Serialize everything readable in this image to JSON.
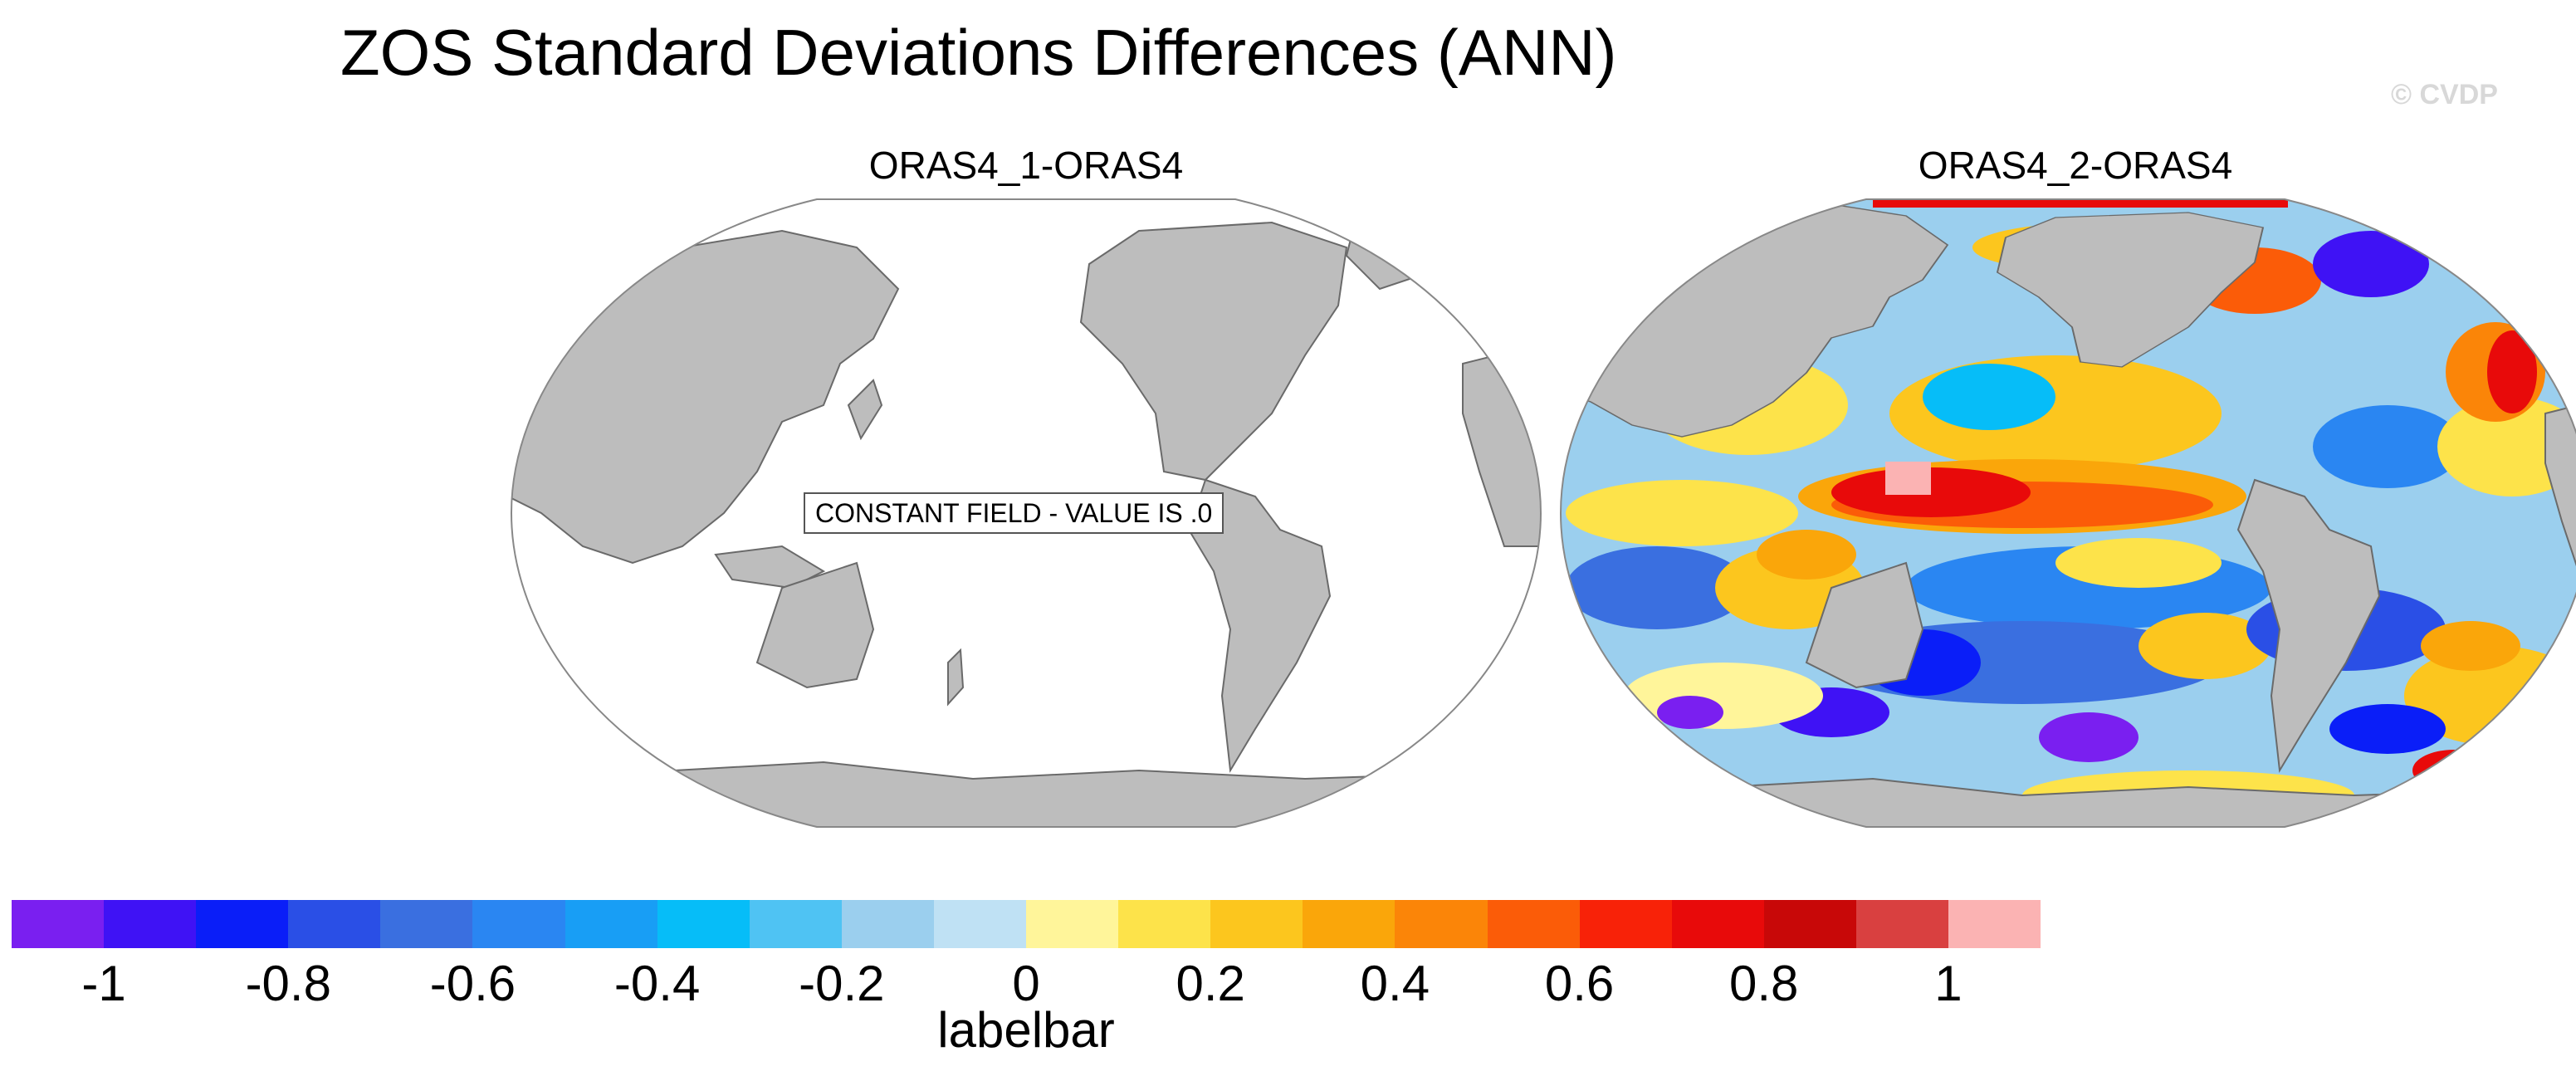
{
  "title": "ZOS Standard Deviations Differences (ANN)",
  "watermark": "© CVDP",
  "panels": [
    {
      "title": "ORAS4_1-ORAS4",
      "notice": "CONSTANT FIELD - VALUE IS .0"
    },
    {
      "title": "ORAS4_2-ORAS4"
    }
  ],
  "colorbar": {
    "label": "labelbar",
    "colors": [
      "#7a1ff0",
      "#3f12f5",
      "#0a1ef8",
      "#2a4fe6",
      "#3a6fe0",
      "#2a86f2",
      "#189ef5",
      "#06bdf8",
      "#4fc3f3",
      "#9bcfee",
      "#bfe1f4",
      "#fff59a",
      "#fde34a",
      "#fcc61e",
      "#faa60a",
      "#fb8508",
      "#fb5c08",
      "#f82208",
      "#e80a0a",
      "#c80808",
      "#d94040",
      "#fbb3b3"
    ],
    "ticks": [
      "-1",
      "-0.8",
      "-0.6",
      "-0.4",
      "-0.2",
      "0",
      "0.2",
      "0.4",
      "0.6",
      "0.8",
      "1"
    ]
  },
  "legend_colors": {
    "land": "#bdbdbd",
    "ocean": "#ffffff",
    "outline": "#888888"
  }
}
